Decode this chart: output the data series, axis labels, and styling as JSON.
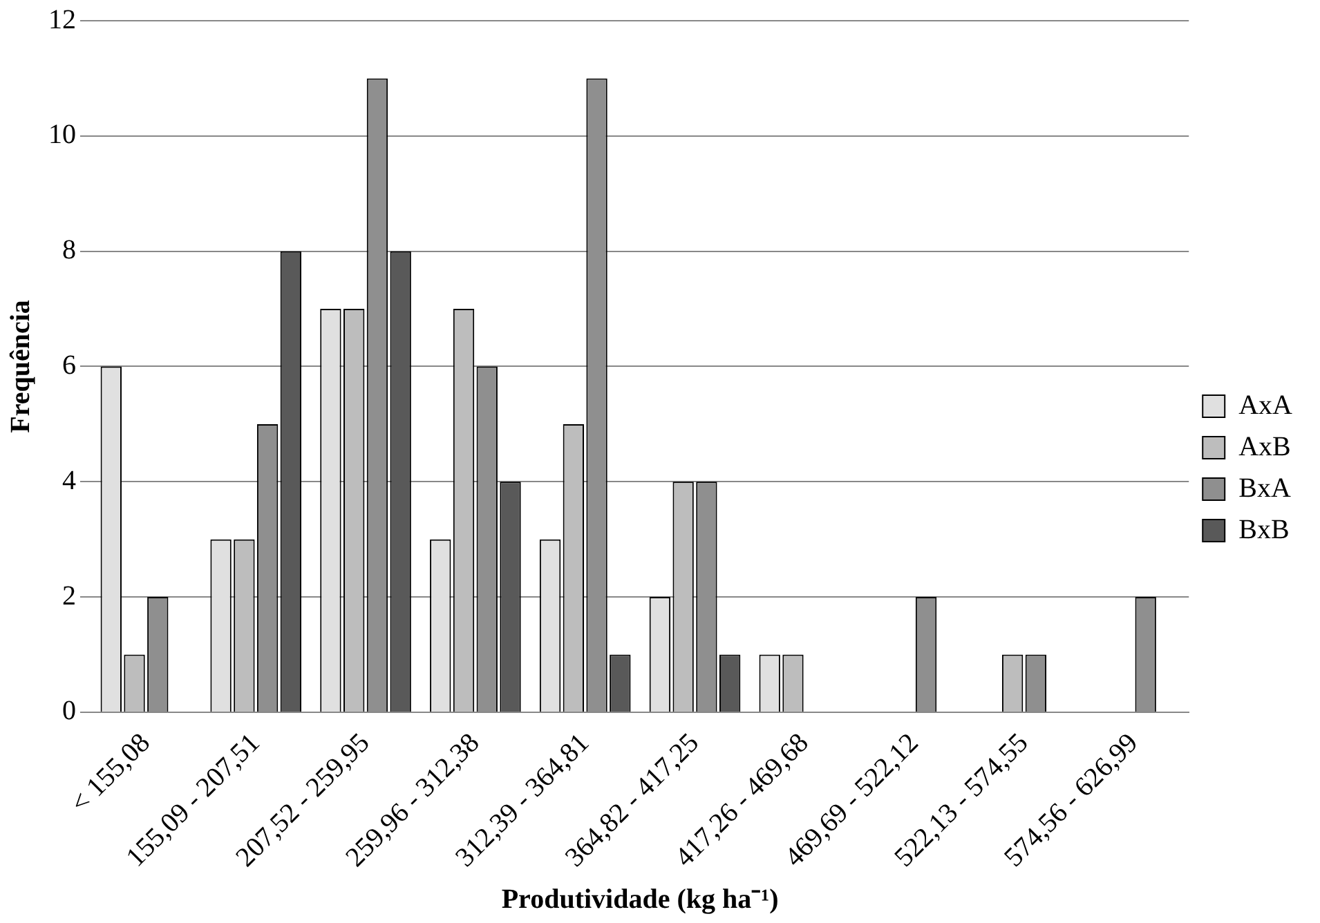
{
  "chart_data": {
    "type": "bar",
    "xlabel": "Produtividade (kg ha⁻¹)",
    "ylabel": "Frequência",
    "categories": [
      "< 155,08",
      "155,09 - 207,51",
      "207,52 - 259,95",
      "259,96 - 312,38",
      "312,39 - 364,81",
      "364,82 - 417,25",
      "417,26 - 469,68",
      "469,69 - 522,12",
      "522,13 - 574,55",
      "574,56 - 626,99"
    ],
    "series": [
      {
        "name": "AxA",
        "color": "#e0e0e0",
        "values": [
          6,
          3,
          7,
          3,
          3,
          2,
          1,
          0,
          0,
          0
        ]
      },
      {
        "name": "AxB",
        "color": "#bdbdbd",
        "values": [
          1,
          3,
          7,
          7,
          5,
          4,
          1,
          0,
          1,
          0
        ]
      },
      {
        "name": "BxA",
        "color": "#8f8f8f",
        "values": [
          2,
          5,
          11,
          6,
          11,
          4,
          0,
          2,
          1,
          2
        ]
      },
      {
        "name": "BxB",
        "color": "#595959",
        "values": [
          0,
          8,
          8,
          4,
          1,
          1,
          0,
          0,
          0,
          0
        ]
      }
    ],
    "ylim": [
      0,
      12
    ],
    "yticks": [
      0,
      2,
      4,
      6,
      8,
      10,
      12
    ],
    "grid": "y",
    "legend": "right"
  }
}
